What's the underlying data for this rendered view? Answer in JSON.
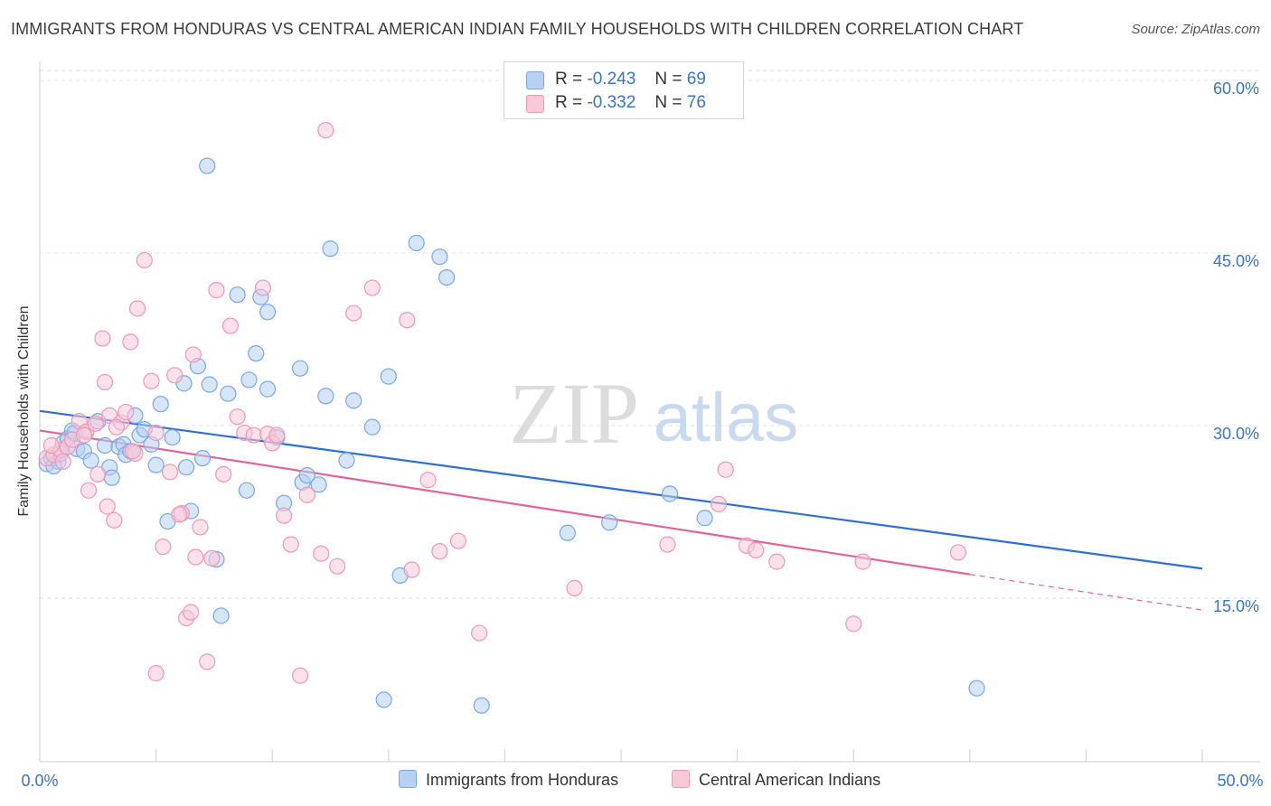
{
  "header": {
    "title": "IMMIGRANTS FROM HONDURAS VS CENTRAL AMERICAN INDIAN FAMILY HOUSEHOLDS WITH CHILDREN CORRELATION CHART",
    "source": "Source: ZipAtlas.com"
  },
  "watermark": {
    "zip": "ZIP",
    "atlas": "atlas"
  },
  "legend": {
    "items": [
      {
        "r_label": "R =",
        "r_value": "-0.243",
        "n_label": "N =",
        "n_value": "69",
        "color": "#b7d0f3",
        "border": "#7aa7e6"
      },
      {
        "r_label": "R =",
        "r_value": "-0.332",
        "n_label": "N =",
        "n_value": "76",
        "color": "#f9c9d8",
        "border": "#ee98b3"
      }
    ]
  },
  "chart_data": {
    "type": "scatter",
    "title": "IMMIGRANTS FROM HONDURAS VS CENTRAL AMERICAN INDIAN FAMILY HOUSEHOLDS WITH CHILDREN CORRELATION CHART",
    "xlabel": "",
    "ylabel": "Family Households with Children",
    "xlim": [
      0,
      50
    ],
    "ylim": [
      0,
      60
    ],
    "x_tick_labels": [
      "0.0%",
      "50.0%"
    ],
    "y_ticks": [
      15,
      30,
      45,
      60
    ],
    "y_tick_labels": [
      "15.0%",
      "30.0%",
      "45.0%",
      "60.0%"
    ],
    "grid": true,
    "legend_position": "top-center",
    "series": [
      {
        "name": "Immigrants from Honduras",
        "color": "#7aa7e6",
        "fill": "#b7d0f3",
        "line_color": "#2e6fd0",
        "trend": {
          "x0": 0,
          "y0": 31.9,
          "x1": 50,
          "y1": 18.2
        },
        "points": [
          [
            0.3,
            27.3
          ],
          [
            0.5,
            27.8
          ],
          [
            0.8,
            27.5
          ],
          [
            1.0,
            29.1
          ],
          [
            1.2,
            29.5
          ],
          [
            1.4,
            30.2
          ],
          [
            1.6,
            28.6
          ],
          [
            1.9,
            28.4
          ],
          [
            2.2,
            27.6
          ],
          [
            2.5,
            31.0
          ],
          [
            2.8,
            28.9
          ],
          [
            3.0,
            27.0
          ],
          [
            3.1,
            26.1
          ],
          [
            3.4,
            28.8
          ],
          [
            3.6,
            29.0
          ],
          [
            3.7,
            28.1
          ],
          [
            4.1,
            31.5
          ],
          [
            4.3,
            29.8
          ],
          [
            4.5,
            30.3
          ],
          [
            5.0,
            27.2
          ],
          [
            5.2,
            32.5
          ],
          [
            5.7,
            29.6
          ],
          [
            6.2,
            34.3
          ],
          [
            6.3,
            27.0
          ],
          [
            6.5,
            23.2
          ],
          [
            6.8,
            35.8
          ],
          [
            7.0,
            27.8
          ],
          [
            7.3,
            34.2
          ],
          [
            7.6,
            19.0
          ],
          [
            7.8,
            14.1
          ],
          [
            8.1,
            33.4
          ],
          [
            8.5,
            42.0
          ],
          [
            8.9,
            25.0
          ],
          [
            9.0,
            34.6
          ],
          [
            9.3,
            36.9
          ],
          [
            9.5,
            41.8
          ],
          [
            9.8,
            33.8
          ],
          [
            10.2,
            29.6
          ],
          [
            10.5,
            23.9
          ],
          [
            11.2,
            35.6
          ],
          [
            11.3,
            25.7
          ],
          [
            11.5,
            26.3
          ],
          [
            12.0,
            25.5
          ],
          [
            12.3,
            33.2
          ],
          [
            12.5,
            46.0
          ],
          [
            13.2,
            27.6
          ],
          [
            13.5,
            32.8
          ],
          [
            14.3,
            30.5
          ],
          [
            15.0,
            34.9
          ],
          [
            15.5,
            17.6
          ],
          [
            16.2,
            46.5
          ],
          [
            17.2,
            45.3
          ],
          [
            17.5,
            43.5
          ],
          [
            19.0,
            6.3
          ],
          [
            22.7,
            21.3
          ],
          [
            24.5,
            22.2
          ],
          [
            27.1,
            24.7
          ],
          [
            28.6,
            22.6
          ],
          [
            40.3,
            7.8
          ],
          [
            7.2,
            53.2
          ],
          [
            9.8,
            40.5
          ],
          [
            5.5,
            22.3
          ],
          [
            4.8,
            29.0
          ],
          [
            2.0,
            30.1
          ],
          [
            1.5,
            30.0
          ],
          [
            0.6,
            27.1
          ],
          [
            0.9,
            28.2
          ],
          [
            14.8,
            6.8
          ],
          [
            3.9,
            28.4
          ]
        ]
      },
      {
        "name": "Central American Indians",
        "color": "#ee98b3",
        "fill": "#f9c9d8",
        "line_color": "#e0649a",
        "trend": {
          "x0": 0,
          "y0": 30.2,
          "x1": 40,
          "y1": 17.7
        },
        "trend_dashed_to": {
          "x": 50,
          "y": 14.6
        },
        "points": [
          [
            0.3,
            27.8
          ],
          [
            0.6,
            28.1
          ],
          [
            0.9,
            28.5
          ],
          [
            1.2,
            28.8
          ],
          [
            1.4,
            29.4
          ],
          [
            1.7,
            31.0
          ],
          [
            2.0,
            30.1
          ],
          [
            2.1,
            25.0
          ],
          [
            2.4,
            30.8
          ],
          [
            2.5,
            26.4
          ],
          [
            2.7,
            38.2
          ],
          [
            2.8,
            34.4
          ],
          [
            3.0,
            31.5
          ],
          [
            3.2,
            22.4
          ],
          [
            3.5,
            30.9
          ],
          [
            3.7,
            31.8
          ],
          [
            3.9,
            37.9
          ],
          [
            4.1,
            28.2
          ],
          [
            4.2,
            40.8
          ],
          [
            4.5,
            45.0
          ],
          [
            4.8,
            34.5
          ],
          [
            5.0,
            30.0
          ],
          [
            5.3,
            20.1
          ],
          [
            5.6,
            26.6
          ],
          [
            5.8,
            35.0
          ],
          [
            6.1,
            23.0
          ],
          [
            6.3,
            13.9
          ],
          [
            6.5,
            14.4
          ],
          [
            6.6,
            36.8
          ],
          [
            6.7,
            19.2
          ],
          [
            6.9,
            21.8
          ],
          [
            7.2,
            10.1
          ],
          [
            7.4,
            19.1
          ],
          [
            7.6,
            42.4
          ],
          [
            7.9,
            26.4
          ],
          [
            8.2,
            39.3
          ],
          [
            8.5,
            31.4
          ],
          [
            8.8,
            30.0
          ],
          [
            9.2,
            29.8
          ],
          [
            9.6,
            42.6
          ],
          [
            9.8,
            29.9
          ],
          [
            10.0,
            29.1
          ],
          [
            10.2,
            29.8
          ],
          [
            10.5,
            22.8
          ],
          [
            10.8,
            20.3
          ],
          [
            11.2,
            8.9
          ],
          [
            11.5,
            24.6
          ],
          [
            12.3,
            56.3
          ],
          [
            12.8,
            18.4
          ],
          [
            13.5,
            40.4
          ],
          [
            14.3,
            42.6
          ],
          [
            15.8,
            39.8
          ],
          [
            16.0,
            18.1
          ],
          [
            16.7,
            25.9
          ],
          [
            17.2,
            19.7
          ],
          [
            18.0,
            20.6
          ],
          [
            18.9,
            12.6
          ],
          [
            23.0,
            16.5
          ],
          [
            27.0,
            20.3
          ],
          [
            29.5,
            26.8
          ],
          [
            29.2,
            23.8
          ],
          [
            30.4,
            20.2
          ],
          [
            30.8,
            19.8
          ],
          [
            31.7,
            18.8
          ],
          [
            35.0,
            13.4
          ],
          [
            35.4,
            18.8
          ],
          [
            39.5,
            19.6
          ],
          [
            5.0,
            9.1
          ],
          [
            4.0,
            28.4
          ],
          [
            1.0,
            27.5
          ],
          [
            0.5,
            28.9
          ],
          [
            1.9,
            29.8
          ],
          [
            3.3,
            30.5
          ],
          [
            2.9,
            23.6
          ],
          [
            6.0,
            22.9
          ],
          [
            12.1,
            19.5
          ]
        ]
      }
    ]
  },
  "bottom_legend": [
    {
      "label": "Immigrants from Honduras",
      "color": "#b7d0f3",
      "border": "#7aa7e6"
    },
    {
      "label": "Central American Indians",
      "color": "#f9c9d8",
      "border": "#ee98b3"
    }
  ]
}
